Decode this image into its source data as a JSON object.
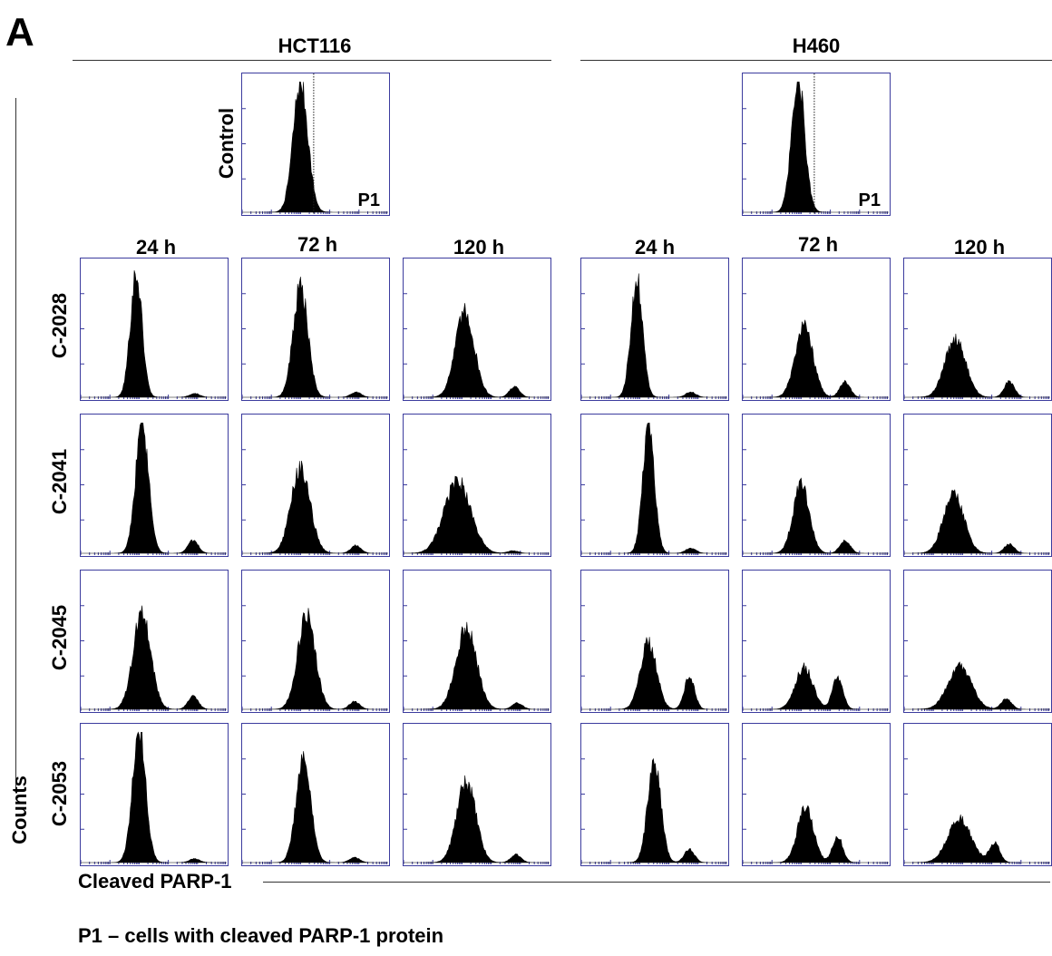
{
  "panel_label": "A",
  "footnote": "P1 – cells with cleaved PARP-1 protein",
  "chart_data": {
    "type": "histogram-grid",
    "y_axis_label": "Counts",
    "x_axis_label": "Cleaved PARP-1",
    "gate_label": "P1",
    "time_points": [
      "24 h",
      "72 h",
      "120 h"
    ],
    "control_label": "Control",
    "cell_lines": [
      {
        "name": "HCT116",
        "control": {
          "main_peak_height": 1.0,
          "main_peak_pos": 0.4,
          "main_peak_width": 0.05,
          "p1_peak_height": 0.0,
          "p1_peak_pos": 0.75
        },
        "treatments": [
          {
            "compound": "C-2028",
            "histograms": [
              {
                "time": "24 h",
                "main_peak_height": 0.95,
                "main_peak_pos": 0.38,
                "main_peak_width": 0.04,
                "p1_peak_height": 0.03,
                "p1_peak_pos": 0.78
              },
              {
                "time": "72 h",
                "main_peak_height": 0.85,
                "main_peak_pos": 0.4,
                "main_peak_width": 0.05,
                "p1_peak_height": 0.04,
                "p1_peak_pos": 0.78
              },
              {
                "time": "120 h",
                "main_peak_height": 0.65,
                "main_peak_pos": 0.42,
                "main_peak_width": 0.065,
                "p1_peak_height": 0.08,
                "p1_peak_pos": 0.76
              }
            ]
          },
          {
            "compound": "C-2041",
            "histograms": [
              {
                "time": "24 h",
                "main_peak_height": 0.97,
                "main_peak_pos": 0.42,
                "main_peak_width": 0.045,
                "p1_peak_height": 0.1,
                "p1_peak_pos": 0.77
              },
              {
                "time": "72 h",
                "main_peak_height": 0.65,
                "main_peak_pos": 0.4,
                "main_peak_width": 0.065,
                "p1_peak_height": 0.06,
                "p1_peak_pos": 0.78
              },
              {
                "time": "120 h",
                "main_peak_height": 0.55,
                "main_peak_pos": 0.37,
                "main_peak_width": 0.09,
                "p1_peak_height": 0.02,
                "p1_peak_pos": 0.75
              }
            ]
          },
          {
            "compound": "C-2045",
            "histograms": [
              {
                "time": "24 h",
                "main_peak_height": 0.75,
                "main_peak_pos": 0.42,
                "main_peak_width": 0.06,
                "p1_peak_height": 0.1,
                "p1_peak_pos": 0.77
              },
              {
                "time": "72 h",
                "main_peak_height": 0.72,
                "main_peak_pos": 0.44,
                "main_peak_width": 0.06,
                "p1_peak_height": 0.06,
                "p1_peak_pos": 0.77
              },
              {
                "time": "120 h",
                "main_peak_height": 0.62,
                "main_peak_pos": 0.43,
                "main_peak_width": 0.07,
                "p1_peak_height": 0.05,
                "p1_peak_pos": 0.78
              }
            ]
          },
          {
            "compound": "C-2053",
            "histograms": [
              {
                "time": "24 h",
                "main_peak_height": 1.0,
                "main_peak_pos": 0.4,
                "main_peak_width": 0.045,
                "p1_peak_height": 0.03,
                "p1_peak_pos": 0.78
              },
              {
                "time": "72 h",
                "main_peak_height": 0.8,
                "main_peak_pos": 0.42,
                "main_peak_width": 0.05,
                "p1_peak_height": 0.04,
                "p1_peak_pos": 0.77
              },
              {
                "time": "120 h",
                "main_peak_height": 0.62,
                "main_peak_pos": 0.43,
                "main_peak_width": 0.065,
                "p1_peak_height": 0.06,
                "p1_peak_pos": 0.77
              }
            ]
          }
        ]
      },
      {
        "name": "H460",
        "control": {
          "main_peak_height": 1.0,
          "main_peak_pos": 0.38,
          "main_peak_width": 0.045,
          "p1_peak_height": 0.0,
          "p1_peak_pos": 0.75
        },
        "treatments": [
          {
            "compound": "C-2028",
            "histograms": [
              {
                "time": "24 h",
                "main_peak_height": 0.9,
                "main_peak_pos": 0.38,
                "main_peak_width": 0.04,
                "p1_peak_height": 0.04,
                "p1_peak_pos": 0.75
              },
              {
                "time": "72 h",
                "main_peak_height": 0.55,
                "main_peak_pos": 0.42,
                "main_peak_width": 0.06,
                "p1_peak_height": 0.12,
                "p1_peak_pos": 0.7
              },
              {
                "time": "120 h",
                "main_peak_height": 0.45,
                "main_peak_pos": 0.35,
                "main_peak_width": 0.07,
                "p1_peak_height": 0.12,
                "p1_peak_pos": 0.72
              }
            ]
          },
          {
            "compound": "C-2041",
            "histograms": [
              {
                "time": "24 h",
                "main_peak_height": 0.95,
                "main_peak_pos": 0.46,
                "main_peak_width": 0.04,
                "p1_peak_height": 0.04,
                "p1_peak_pos": 0.75
              },
              {
                "time": "72 h",
                "main_peak_height": 0.52,
                "main_peak_pos": 0.4,
                "main_peak_width": 0.055,
                "p1_peak_height": 0.1,
                "p1_peak_pos": 0.7
              },
              {
                "time": "120 h",
                "main_peak_height": 0.45,
                "main_peak_pos": 0.34,
                "main_peak_width": 0.07,
                "p1_peak_height": 0.07,
                "p1_peak_pos": 0.72
              }
            ]
          },
          {
            "compound": "C-2045",
            "histograms": [
              {
                "time": "24 h",
                "main_peak_height": 0.52,
                "main_peak_pos": 0.46,
                "main_peak_width": 0.055,
                "p1_peak_height": 0.25,
                "p1_peak_pos": 0.74
              },
              {
                "time": "72 h",
                "main_peak_height": 0.32,
                "main_peak_pos": 0.42,
                "main_peak_width": 0.06,
                "p1_peak_height": 0.25,
                "p1_peak_pos": 0.65
              },
              {
                "time": "120 h",
                "main_peak_height": 0.33,
                "main_peak_pos": 0.38,
                "main_peak_width": 0.08,
                "p1_peak_height": 0.08,
                "p1_peak_pos": 0.7
              }
            ]
          },
          {
            "compound": "C-2053",
            "histograms": [
              {
                "time": "24 h",
                "main_peak_height": 0.78,
                "main_peak_pos": 0.5,
                "main_peak_width": 0.045,
                "p1_peak_height": 0.1,
                "p1_peak_pos": 0.74
              },
              {
                "time": "72 h",
                "main_peak_height": 0.42,
                "main_peak_pos": 0.43,
                "main_peak_width": 0.055,
                "p1_peak_height": 0.2,
                "p1_peak_pos": 0.65
              },
              {
                "time": "120 h",
                "main_peak_height": 0.33,
                "main_peak_pos": 0.38,
                "main_peak_width": 0.08,
                "p1_peak_height": 0.15,
                "p1_peak_pos": 0.62
              }
            ]
          }
        ]
      }
    ]
  },
  "colors": {
    "frame": "#3c3c9e",
    "histogram_fill": "#000000",
    "gate_line": "#222222",
    "rule_line": "#333333"
  }
}
